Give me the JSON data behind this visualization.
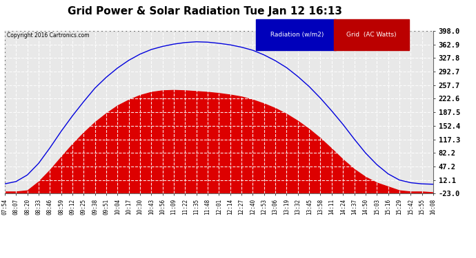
{
  "title": "Grid Power & Solar Radiation Tue Jan 12 16:13",
  "copyright": "Copyright 2016 Cartronics.com",
  "y_ticks": [
    398.0,
    362.9,
    327.8,
    292.7,
    257.7,
    222.6,
    187.5,
    152.4,
    117.3,
    82.2,
    47.2,
    12.1,
    -23.0
  ],
  "ylim": [
    -23.0,
    398.0
  ],
  "bg_color": "#ffffff",
  "plot_bg": "#e8e8e8",
  "grid_color": "#cccccc",
  "x_labels": [
    "07:54",
    "08:07",
    "08:20",
    "08:33",
    "08:46",
    "08:59",
    "09:12",
    "09:25",
    "09:38",
    "09:51",
    "10:04",
    "10:17",
    "10:30",
    "10:43",
    "10:56",
    "11:09",
    "11:22",
    "11:35",
    "11:48",
    "12:01",
    "12:14",
    "12:27",
    "12:40",
    "12:53",
    "13:06",
    "13:19",
    "13:32",
    "13:45",
    "13:58",
    "14:11",
    "14:24",
    "14:37",
    "14:50",
    "15:03",
    "15:16",
    "15:29",
    "15:42",
    "15:55",
    "16:08"
  ],
  "radiation_values": [
    2,
    8,
    25,
    55,
    95,
    138,
    178,
    215,
    250,
    278,
    302,
    322,
    338,
    350,
    358,
    364,
    368,
    370,
    369,
    366,
    362,
    356,
    348,
    336,
    321,
    303,
    280,
    254,
    224,
    191,
    156,
    118,
    82,
    52,
    28,
    12,
    5,
    2,
    1
  ],
  "grid_values": [
    -18,
    -18,
    -15,
    8,
    38,
    72,
    105,
    135,
    162,
    185,
    205,
    220,
    232,
    240,
    244,
    245,
    244,
    242,
    240,
    237,
    233,
    228,
    220,
    210,
    198,
    183,
    165,
    144,
    120,
    93,
    65,
    40,
    20,
    5,
    -5,
    -15,
    -18,
    -18,
    -20
  ],
  "radiation_color": "#0000dd",
  "grid_fill_color": "#dd0000",
  "radiation_legend_bg": "#0000bb",
  "grid_legend_bg": "#bb0000"
}
